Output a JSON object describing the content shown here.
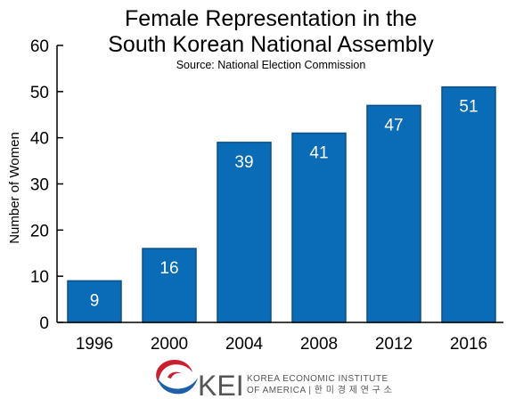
{
  "chart_data": {
    "type": "bar",
    "title_lines": [
      "Female Representation in the",
      "South Korean National Assembly"
    ],
    "subtitle": "Source: National Election Commission",
    "xlabel": "",
    "ylabel": "Number of Women",
    "categories": [
      "1996",
      "2000",
      "2004",
      "2008",
      "2012",
      "2016"
    ],
    "values": [
      9,
      16,
      39,
      41,
      47,
      51
    ],
    "data_labels": [
      "9",
      "16",
      "39",
      "41",
      "47",
      "51"
    ],
    "ylim": [
      0,
      60
    ],
    "yticks": [
      0,
      10,
      20,
      30,
      40,
      50,
      60
    ],
    "grid": false,
    "bar_color": "#0a6bb7",
    "bar_edge_color": "#0c4f8a"
  },
  "logo": {
    "wordmark": "KEI",
    "line1": "KOREA ECONOMIC INSTITUTE",
    "line2": "OF AMERICA | 한 미 경 제 연 구 소",
    "red": "#c8202f",
    "blue": "#1f5fa8"
  }
}
